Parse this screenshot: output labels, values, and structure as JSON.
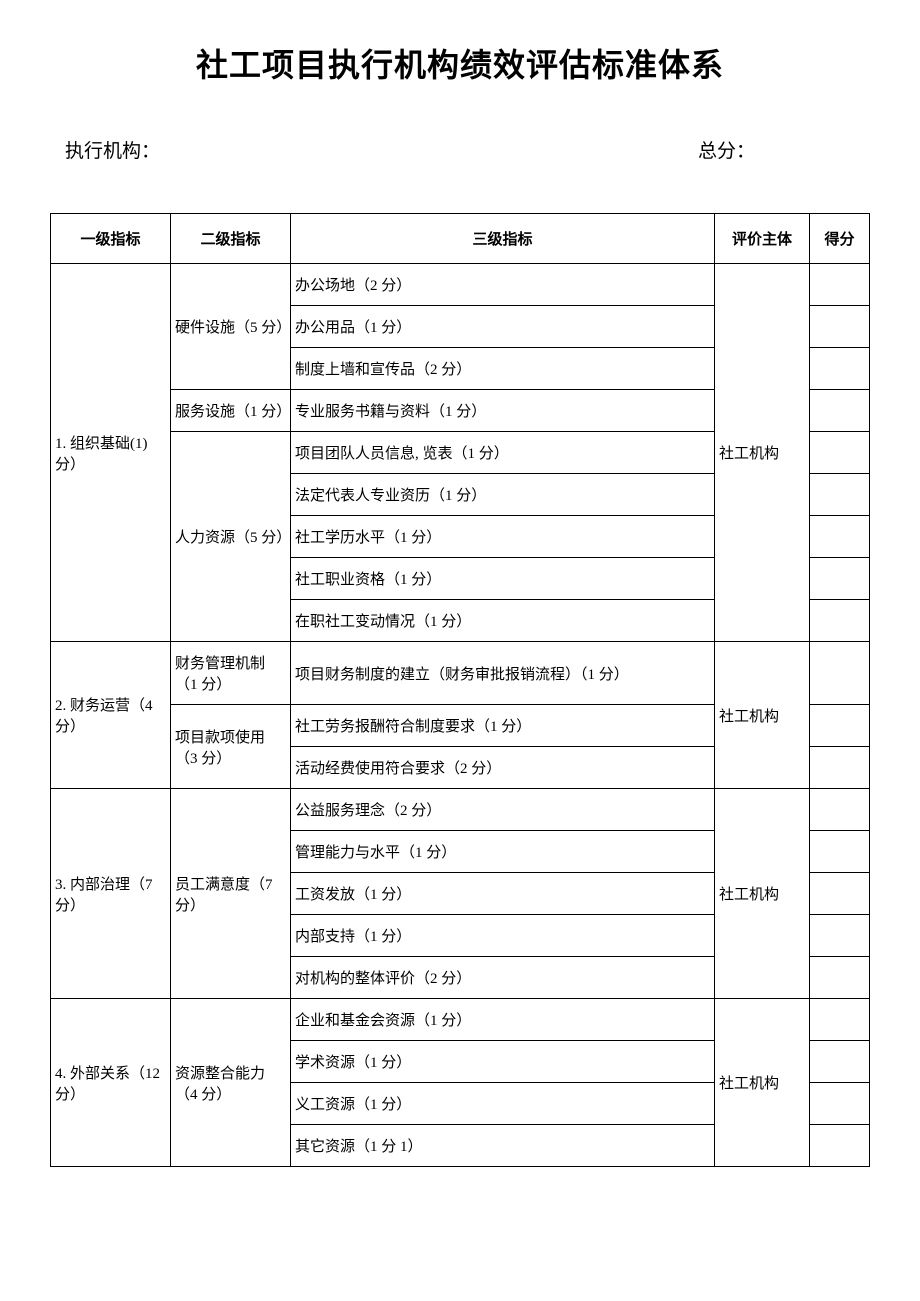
{
  "title": "社工项目执行机构绩效评估标准体系",
  "header": {
    "left_label": "执行机构：",
    "right_label": "总分："
  },
  "table": {
    "headers": {
      "col1": "一级指标",
      "col2": "二级指标",
      "col3": "三级指标",
      "col4": "评价主体",
      "col5": "得分"
    },
    "sections": [
      {
        "level1": "1. 组织基础(1) 分）",
        "eval_subject": "社工机构",
        "groups": [
          {
            "level2": "硬件设施（5 分）",
            "items": [
              "办公场地（2 分）",
              "办公用品（1 分）",
              "制度上墙和宣传品（2 分）"
            ]
          },
          {
            "level2": "服务设施（1 分）",
            "items": [
              "专业服务书籍与资料（1 分）"
            ]
          },
          {
            "level2": "人力资源（5 分）",
            "items": [
              "项目团队人员信息, 览表（1 分）",
              "法定代表人专业资历（1 分）",
              "社工学历水平（1 分）",
              "社工职业资格（1 分）",
              "在职社工变动情况（1 分）"
            ]
          }
        ]
      },
      {
        "level1": "2. 财务运营（4 分）",
        "eval_subject": "社工机构",
        "groups": [
          {
            "level2": "财务管理机制（1 分）",
            "items": [
              "项目财务制度的建立（财务审批报销流程）（1 分）"
            ]
          },
          {
            "level2": "项目款项使用（3 分）",
            "items": [
              "社工劳务报酬符合制度要求（1 分）",
              "活动经费使用符合要求（2 分）"
            ]
          }
        ]
      },
      {
        "level1": "3. 内部治理（7 分）",
        "eval_subject": "社工机构",
        "groups": [
          {
            "level2": "员工满意度（7 分）",
            "items": [
              "公益服务理念（2 分）",
              "管理能力与水平（1 分）",
              "工资发放（1 分）",
              "内部支持（1 分）",
              "对机构的整体评价（2 分）"
            ]
          }
        ]
      },
      {
        "level1": "4. 外部关系（12 分）",
        "eval_subject": "社工机构",
        "groups": [
          {
            "level2": "资源整合能力（4 分）",
            "items": [
              "企业和基金会资源（1 分）",
              "学术资源（1 分）",
              "义工资源（1 分）",
              "其它资源（1 分 1）"
            ]
          }
        ]
      }
    ]
  }
}
